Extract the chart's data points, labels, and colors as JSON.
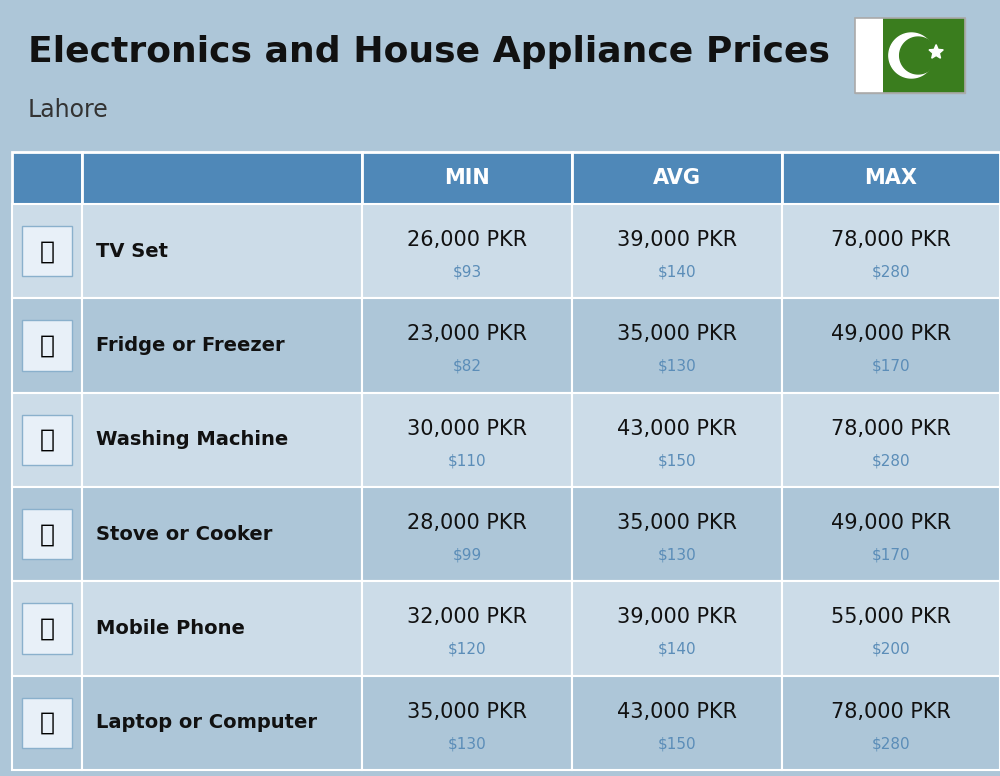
{
  "title": "Electronics and House Appliance Prices",
  "subtitle": "Lahore",
  "bg_color": "#adc6d8",
  "header_bg": "#4f88b8",
  "header_text_color": "#ffffff",
  "row_bg_even": "#ccdce8",
  "row_bg_odd": "#adc6d8",
  "item_name_color": "#111111",
  "pkr_color": "#111111",
  "usd_color": "#5b8db8",
  "col_headers": [
    "MIN",
    "AVG",
    "MAX"
  ],
  "items": [
    {
      "name": "TV Set",
      "min_pkr": "26,000 PKR",
      "min_usd": "$93",
      "avg_pkr": "39,000 PKR",
      "avg_usd": "$140",
      "max_pkr": "78,000 PKR",
      "max_usd": "$280"
    },
    {
      "name": "Fridge or Freezer",
      "min_pkr": "23,000 PKR",
      "min_usd": "$82",
      "avg_pkr": "35,000 PKR",
      "avg_usd": "$130",
      "max_pkr": "49,000 PKR",
      "max_usd": "$170"
    },
    {
      "name": "Washing Machine",
      "min_pkr": "30,000 PKR",
      "min_usd": "$110",
      "avg_pkr": "43,000 PKR",
      "avg_usd": "$150",
      "max_pkr": "78,000 PKR",
      "max_usd": "$280"
    },
    {
      "name": "Stove or Cooker",
      "min_pkr": "28,000 PKR",
      "min_usd": "$99",
      "avg_pkr": "35,000 PKR",
      "avg_usd": "$130",
      "max_pkr": "49,000 PKR",
      "max_usd": "$170"
    },
    {
      "name": "Mobile Phone",
      "min_pkr": "32,000 PKR",
      "min_usd": "$120",
      "avg_pkr": "39,000 PKR",
      "avg_usd": "$140",
      "max_pkr": "55,000 PKR",
      "max_usd": "$200"
    },
    {
      "name": "Laptop or Computer",
      "min_pkr": "35,000 PKR",
      "min_usd": "$130",
      "avg_pkr": "43,000 PKR",
      "avg_usd": "$150",
      "max_pkr": "78,000 PKR",
      "max_usd": "$280"
    }
  ],
  "flag_green": "#3a7d1e",
  "flag_white": "#ffffff",
  "title_fontsize": 26,
  "subtitle_fontsize": 17,
  "header_fontsize": 15,
  "name_fontsize": 14,
  "pkr_fontsize": 15,
  "usd_fontsize": 11
}
